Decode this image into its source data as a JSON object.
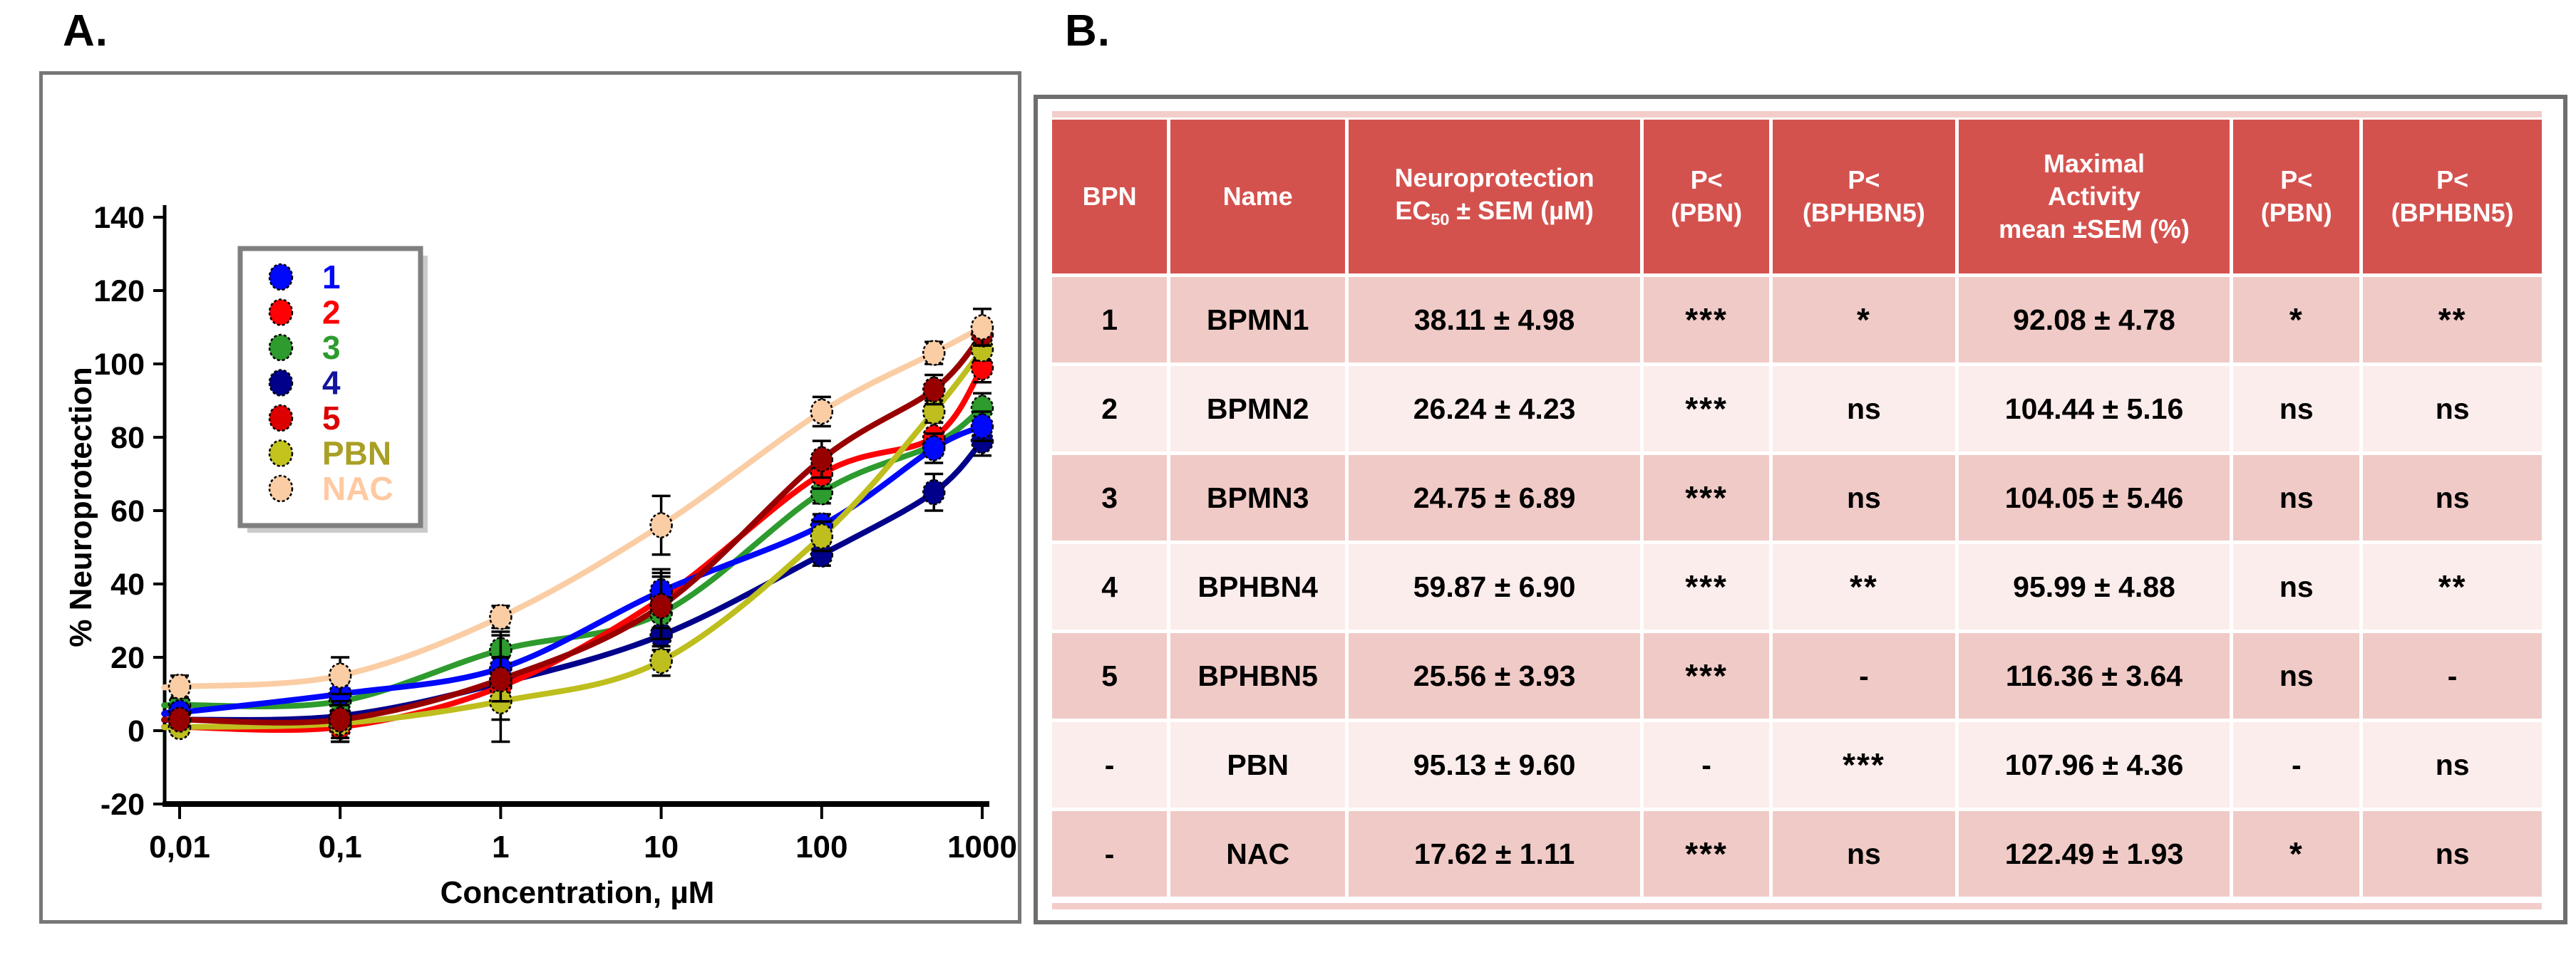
{
  "figure": {
    "panel_a_label": "A.",
    "panel_b_label": "B."
  },
  "colors": {
    "panel_a_border": "#777777",
    "panel_b_border": "#6e6e6e",
    "table_header_bg": "#d4524e",
    "table_header_text": "#ffffff",
    "table_row_odd": "#f0cac6",
    "table_row_even": "#fbedeb",
    "table_strip": "#f3cdc9",
    "axis": "#000000",
    "legend_border": "#7f7f7f"
  },
  "chart_data": [
    {
      "type": "line",
      "title": "",
      "xlabel": "Concentration, µM",
      "ylabel": "% Neuroprotection",
      "x_scale": "log",
      "x": [
        0.01,
        0.1,
        1,
        10,
        100,
        500,
        1000
      ],
      "x_tick_values": [
        0.01,
        0.1,
        1,
        10,
        100,
        1000
      ],
      "x_tick_labels": [
        "0,01",
        "0,1",
        "1",
        "10",
        "100",
        "1000"
      ],
      "ylim": [
        -20,
        140
      ],
      "y_ticks": [
        140,
        120,
        100,
        80,
        60,
        40,
        20,
        0,
        -20
      ],
      "grid": false,
      "legend_position": "upper-left-inside",
      "series": [
        {
          "name": "1",
          "color": "#0008fa",
          "legend_marker": "#0008fa",
          "label_color": "#0008fa",
          "values": [
            5,
            10,
            17,
            38,
            56,
            77,
            83
          ],
          "sem": [
            2,
            3,
            3,
            4,
            3,
            4,
            4
          ]
        },
        {
          "name": "2",
          "color": "#fc0204",
          "legend_marker": "#fc0204",
          "label_color": "#fc0204",
          "values": [
            1,
            1,
            12,
            36,
            70,
            80,
            99
          ],
          "sem": [
            2,
            4,
            15,
            8,
            4,
            4,
            4
          ]
        },
        {
          "name": "3",
          "color": "#2d9b2d",
          "legend_marker": "#2d9b2d",
          "label_color": "#2d9b2d",
          "values": [
            7,
            8,
            22,
            32,
            65,
            78,
            88
          ],
          "sem": [
            2,
            3,
            4,
            4,
            3,
            3,
            4
          ]
        },
        {
          "name": "4",
          "color": "#00008b",
          "legend_marker": "#00008b",
          "label_color": "#1414a0",
          "values": [
            3,
            4,
            13,
            26,
            48,
            65,
            79
          ],
          "sem": [
            2,
            3,
            4,
            4,
            3,
            5,
            4
          ]
        },
        {
          "name": "5",
          "color": "#980000",
          "legend_marker": "#dc0000",
          "label_color": "#dc0000",
          "values": [
            3,
            3,
            14,
            34,
            74,
            93,
            108
          ],
          "sem": [
            2,
            5,
            6,
            9,
            5,
            4,
            3
          ]
        },
        {
          "name": "PBN",
          "color": "#bebe1e",
          "legend_marker": "#c3c31e",
          "label_color": "#a99f25",
          "values": [
            1,
            2,
            8,
            19,
            53,
            87,
            104
          ],
          "sem": [
            2,
            5,
            5,
            4,
            4,
            3,
            3
          ]
        },
        {
          "name": "NAC",
          "color": "#fbcda4",
          "legend_marker": "#fbcda4",
          "label_color": "#ffc9a1",
          "values": [
            12,
            15,
            31,
            56,
            87,
            103,
            110
          ],
          "sem": [
            3,
            5,
            3,
            8,
            4,
            3,
            5
          ]
        }
      ]
    },
    {
      "type": "table",
      "columns": [
        "BPN",
        "Name",
        "Neuroprotection\nEC50 ± SEM (µM)",
        "P<\n(PBN)",
        "P<\n(BPHBN5)",
        "Maximal\nActivity\nmean ±SEM (%)",
        "P<\n(PBN)",
        "P<\n(BPHBN5)"
      ],
      "rows": [
        [
          "1",
          "BPMN1",
          "38.11 ± 4.98",
          "***",
          "*",
          "92.08 ± 4.78",
          "*",
          "**"
        ],
        [
          "2",
          "BPMN2",
          "26.24 ± 4.23",
          "***",
          "ns",
          "104.44 ± 5.16",
          "ns",
          "ns"
        ],
        [
          "3",
          "BPMN3",
          "24.75 ± 6.89",
          "***",
          "ns",
          "104.05 ± 5.46",
          "ns",
          "ns"
        ],
        [
          "4",
          "BPHBN4",
          "59.87 ± 6.90",
          "***",
          "**",
          "95.99 ± 4.88",
          "ns",
          "**"
        ],
        [
          "5",
          "BPHBN5",
          "25.56 ± 3.93",
          "***",
          "-",
          "116.36 ± 3.64",
          "ns",
          "-"
        ],
        [
          "-",
          "PBN",
          "95.13 ± 9.60",
          "-",
          "***",
          "107.96 ± 4.36",
          "-",
          "ns"
        ],
        [
          "-",
          "NAC",
          "17.62 ± 1.11",
          "***",
          "ns",
          "122.49 ± 1.93",
          "*",
          "ns"
        ]
      ]
    }
  ]
}
